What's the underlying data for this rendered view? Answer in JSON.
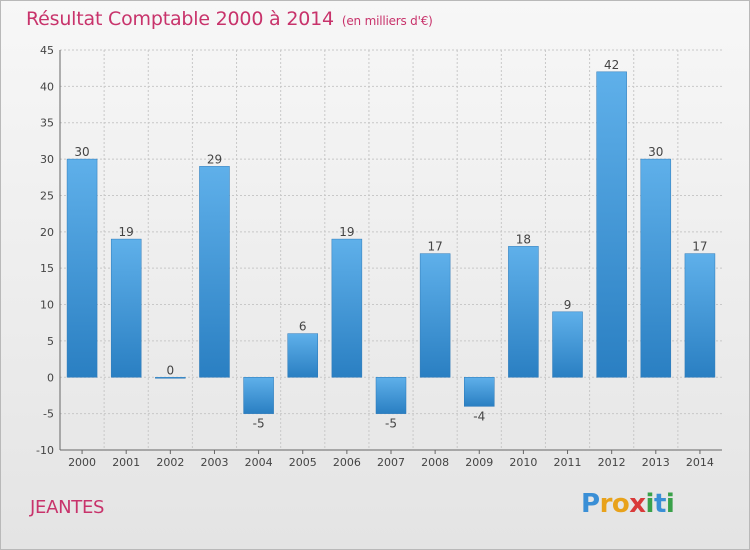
{
  "header": {
    "title": "Résultat Comptable 2000 à 2014",
    "unit": "(en milliers d'€)"
  },
  "commune": "JEANTES",
  "logo": {
    "letters": [
      "P",
      "r",
      "o",
      "x",
      "i",
      "t",
      "i"
    ]
  },
  "colors": {
    "title": "#c8336b",
    "bar_light": "#5fb0ea",
    "bar_dark": "#2a7fc2",
    "grid": "#c8c8c8"
  },
  "chart_data": {
    "type": "bar",
    "categories": [
      "2000",
      "2001",
      "2002",
      "2003",
      "2004",
      "2005",
      "2006",
      "2007",
      "2008",
      "2009",
      "2010",
      "2011",
      "2012",
      "2013",
      "2014"
    ],
    "values": [
      30,
      19,
      0,
      29,
      -5,
      6,
      19,
      -5,
      17,
      -4,
      18,
      9,
      42,
      30,
      17
    ],
    "ylim": [
      -10,
      45
    ],
    "yticks": [
      -10,
      -5,
      0,
      5,
      10,
      15,
      20,
      25,
      30,
      35,
      40,
      45
    ],
    "grid": true
  }
}
